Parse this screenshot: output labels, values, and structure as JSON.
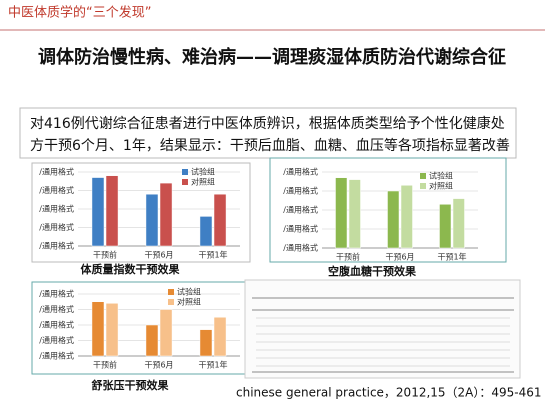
{
  "header": "中医体质学的“三个发现”",
  "title": "调体防治慢性病、难治病——调理痰湿体质防治代谢综合征",
  "body": [
    "对416例代谢综合征患者进行中医体质辨识，根据体质类型给予个性化健康处",
    "方干预6个月、1年，结果显示：干预后血脂、血糖、血压等各项指标显著改善"
  ],
  "chart_data": [
    {
      "type": "bar",
      "caption": "体质量指数干预效果",
      "categories": [
        "干预前",
        "干预6月",
        "干预1年"
      ],
      "series": [
        {
          "name": "试验组",
          "color": "#3f7fc4",
          "values": [
            3.7,
            2.8,
            1.6
          ]
        },
        {
          "name": "对照组",
          "color": "#c9504d",
          "values": [
            3.8,
            3.4,
            2.8
          ]
        }
      ],
      "ylim": [
        0,
        4
      ],
      "yticks": [
        {
          "value": 0,
          "label": "/通用格式"
        },
        {
          "value": 1,
          "label": "/通用格式"
        },
        {
          "value": 2,
          "label": "/通用格式"
        },
        {
          "value": 3,
          "label": "/通用格式"
        },
        {
          "value": 4,
          "label": "/通用格式"
        }
      ]
    },
    {
      "type": "bar",
      "caption": "空腹血糖干预效果",
      "categories": [
        "干预前",
        "干预6月",
        "干预1年"
      ],
      "series": [
        {
          "name": "试验组",
          "color": "#8cb84e",
          "values": [
            3.7,
            3.0,
            2.3
          ]
        },
        {
          "name": "对照组",
          "color": "#c3dca0",
          "values": [
            3.6,
            3.3,
            2.6
          ]
        }
      ],
      "ylim": [
        0,
        4
      ],
      "yticks": [
        {
          "value": 0,
          "label": "/通用格式"
        },
        {
          "value": 1,
          "label": "/通用格式"
        },
        {
          "value": 2,
          "label": "/通用格式"
        },
        {
          "value": 3,
          "label": "/通用格式"
        },
        {
          "value": 4,
          "label": "/通用格式"
        }
      ]
    },
    {
      "type": "bar",
      "caption": "舒张压干预效果",
      "categories": [
        "干预前",
        "干预6月",
        "干预1年"
      ],
      "series": [
        {
          "name": "试验组",
          "color": "#e68a33",
          "values": [
            3.5,
            2.0,
            1.7
          ]
        },
        {
          "name": "对照组",
          "color": "#f7c08a",
          "values": [
            3.4,
            3.0,
            2.5
          ]
        }
      ],
      "ylim": [
        0,
        4
      ],
      "yticks": [
        {
          "value": 0,
          "label": "/通用格式"
        },
        {
          "value": 1,
          "label": "/通用格式"
        },
        {
          "value": 2,
          "label": "/通用格式"
        },
        {
          "value": 3,
          "label": "/通用格式"
        },
        {
          "value": 4,
          "label": "/通用格式"
        }
      ]
    }
  ],
  "citation": "chinese general practice，2012,15（2A）：495-461"
}
